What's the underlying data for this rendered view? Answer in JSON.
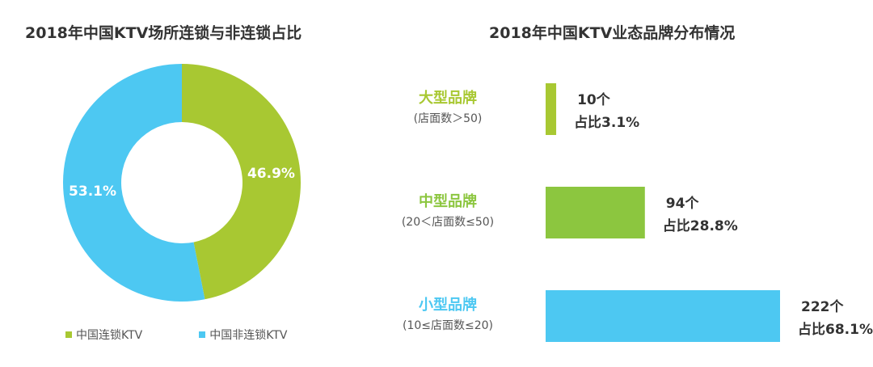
{
  "chart_data": [
    {
      "type": "pie",
      "title": "2018年中国KTV场所连锁与非连锁占比",
      "series": [
        {
          "name": "中国连锁KTV",
          "value": 46.9,
          "label": "46.9%",
          "color": "#a8c832"
        },
        {
          "name": "中国非连锁KTV",
          "value": 53.1,
          "label": "53.1%",
          "color": "#4dc8f2"
        }
      ],
      "legend_position": "bottom"
    },
    {
      "type": "bar",
      "orientation": "horizontal",
      "title": "2018年中国KTV业态品牌分布情况",
      "categories": [
        "大型品牌",
        "中型品牌",
        "小型品牌"
      ],
      "category_notes": [
        "(店面数＞50)",
        "(20＜店面数≤50)",
        "(10≤店面数≤20)"
      ],
      "values": [
        10,
        94,
        222
      ],
      "value_labels": [
        "10个",
        "94个",
        "222个"
      ],
      "share_labels": [
        "占比3.1%",
        "占比28.8%",
        "占比68.1%"
      ],
      "shares": [
        3.1,
        28.8,
        68.1
      ],
      "colors": [
        "#a8c832",
        "#8cc63f",
        "#4dc8f2"
      ]
    }
  ]
}
